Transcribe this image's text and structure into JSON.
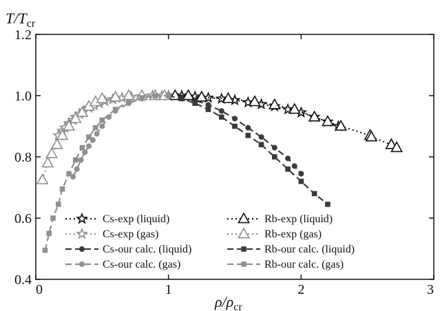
{
  "chart_data": {
    "type": "scatter",
    "title": "",
    "xlabel": "ρ/ρ",
    "xlabel_sub": "cr",
    "ylabel": "T/T",
    "ylabel_sub": "cr",
    "xlim": [
      0,
      3
    ],
    "ylim": [
      0.4,
      1.2
    ],
    "xticks": [
      0,
      1,
      2,
      3
    ],
    "xtick_labels": [
      "0",
      "1",
      "2",
      "3"
    ],
    "yticks": [
      0.4,
      0.6,
      0.8,
      1.0,
      1.2
    ],
    "ytick_labels": [
      "0.4",
      "0.6",
      "0.8",
      "1.0",
      "1.2"
    ],
    "grid": false,
    "legend_position": "bottom-center",
    "colors": {
      "black": "#111111",
      "gray": "#8f8f8f",
      "dark": "#3a3a3a"
    },
    "series": [
      {
        "name": "Cs-exp (liquid)",
        "marker": "star-open",
        "color": "#111111",
        "line": "dotted",
        "x": [
          1.0,
          1.05,
          1.1,
          1.2,
          1.3,
          1.4,
          1.5,
          1.6,
          1.7,
          1.8,
          1.9,
          2.0,
          2.1,
          2.2,
          2.28
        ],
        "y": [
          1.0,
          1.0,
          1.0,
          0.997,
          0.993,
          0.99,
          0.985,
          0.978,
          0.972,
          0.965,
          0.955,
          0.945,
          0.93,
          0.915,
          0.9
        ]
      },
      {
        "name": "Cs-exp (gas)",
        "marker": "star-open",
        "color": "#8f8f8f",
        "line": "dotted",
        "x": [
          0.17,
          0.2,
          0.22,
          0.25,
          0.28,
          0.3,
          0.33,
          0.36,
          0.4,
          0.44,
          0.48,
          0.52,
          0.58,
          0.65,
          0.72,
          0.8,
          0.88,
          0.95,
          1.0
        ],
        "y": [
          0.87,
          0.885,
          0.895,
          0.91,
          0.92,
          0.93,
          0.94,
          0.95,
          0.96,
          0.968,
          0.975,
          0.982,
          0.988,
          0.993,
          0.996,
          0.998,
          1.0,
          1.0,
          1.0
        ]
      },
      {
        "name": "Cs-our calc. (liquid)",
        "marker": "circle",
        "color": "#3a3a3a",
        "line": "dashed",
        "x": [
          1.0,
          1.1,
          1.2,
          1.3,
          1.4,
          1.5,
          1.6,
          1.7,
          1.8,
          1.9,
          1.95,
          2.0
        ],
        "y": [
          1.0,
          0.995,
          0.985,
          0.97,
          0.95,
          0.925,
          0.895,
          0.865,
          0.83,
          0.795,
          0.77,
          0.745
        ]
      },
      {
        "name": "Cs-our calc. (gas)",
        "marker": "circle",
        "color": "#8f8f8f",
        "line": "dashed",
        "x": [
          0.28,
          0.31,
          0.34,
          0.37,
          0.4,
          0.43,
          0.46,
          0.5,
          0.55,
          0.6,
          0.7,
          0.8,
          0.9,
          1.0
        ],
        "y": [
          0.735,
          0.76,
          0.79,
          0.815,
          0.835,
          0.855,
          0.875,
          0.9,
          0.93,
          0.95,
          0.975,
          0.99,
          0.998,
          1.0
        ]
      },
      {
        "name": "Rb-exp (liquid)",
        "marker": "triangle-open",
        "color": "#111111",
        "line": "dotted",
        "x": [
          1.05,
          1.15,
          1.25,
          1.45,
          1.65,
          1.8,
          1.95,
          2.1,
          2.2,
          2.3,
          2.52,
          2.53,
          2.68,
          2.72
        ],
        "y": [
          1.0,
          1.0,
          0.995,
          0.99,
          0.98,
          0.97,
          0.955,
          0.93,
          0.915,
          0.9,
          0.87,
          0.865,
          0.84,
          0.83
        ]
      },
      {
        "name": "Rb-exp (gas)",
        "marker": "triangle-open",
        "color": "#8f8f8f",
        "line": "dotted",
        "x": [
          0.05,
          0.09,
          0.12,
          0.16,
          0.2,
          0.25,
          0.3,
          0.35,
          0.4,
          0.45,
          0.5,
          0.6,
          0.7,
          0.8,
          0.9,
          0.97
        ],
        "y": [
          0.725,
          0.78,
          0.81,
          0.84,
          0.87,
          0.9,
          0.925,
          0.945,
          0.965,
          0.98,
          0.99,
          0.995,
          1.0,
          1.0,
          1.0,
          1.0
        ]
      },
      {
        "name": "Rb-our calc. (liquid)",
        "marker": "square",
        "color": "#3a3a3a",
        "line": "dashed",
        "x": [
          1.0,
          1.1,
          1.2,
          1.3,
          1.4,
          1.5,
          1.6,
          1.7,
          1.8,
          1.9,
          2.0,
          2.1,
          2.2
        ],
        "y": [
          1.0,
          0.99,
          0.975,
          0.955,
          0.93,
          0.9,
          0.87,
          0.84,
          0.8,
          0.76,
          0.72,
          0.68,
          0.645
        ]
      },
      {
        "name": "Rb-our calc. (gas)",
        "marker": "square",
        "color": "#8f8f8f",
        "line": "dashed",
        "x": [
          0.07,
          0.1,
          0.13,
          0.17,
          0.2,
          0.25,
          0.3,
          0.35,
          0.4,
          0.45,
          0.5,
          0.6,
          0.7,
          0.8,
          0.9,
          1.0
        ],
        "y": [
          0.495,
          0.55,
          0.6,
          0.645,
          0.695,
          0.745,
          0.79,
          0.83,
          0.865,
          0.895,
          0.92,
          0.955,
          0.98,
          0.993,
          0.999,
          1.0
        ]
      }
    ]
  }
}
